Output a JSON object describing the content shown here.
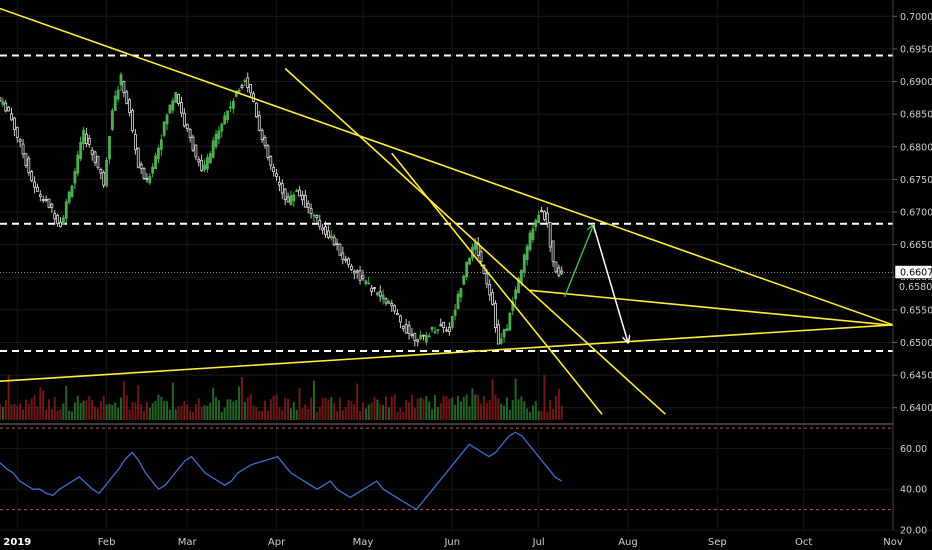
{
  "chart_data": [
    {
      "type": "candlestick",
      "panel": "price",
      "ylim": [
        0.6375,
        0.7025
      ],
      "y_ticks": [
        "0.70000",
        "0.69500",
        "0.69000",
        "0.68500",
        "0.68000",
        "0.67500",
        "0.67000",
        "0.66500",
        "0.66000",
        "0.65500",
        "0.65000",
        "0.64500",
        "0.64000"
      ],
      "x_ticks": [
        {
          "label": "2019",
          "day": 0,
          "bold": true
        },
        {
          "label": "Feb",
          "day": 31,
          "bold": false
        },
        {
          "label": "Mar",
          "day": 59,
          "bold": false
        },
        {
          "label": "Apr",
          "day": 90,
          "bold": false
        },
        {
          "label": "May",
          "day": 120,
          "bold": false
        },
        {
          "label": "Jun",
          "day": 151,
          "bold": false
        },
        {
          "label": "Jul",
          "day": 181,
          "bold": false
        },
        {
          "label": "Aug",
          "day": 212,
          "bold": false
        },
        {
          "label": "Sep",
          "day": 243,
          "bold": false
        },
        {
          "label": "Oct",
          "day": 273,
          "bold": false
        },
        {
          "label": "Nov",
          "day": 304,
          "bold": false
        }
      ],
      "x_domain_days": [
        -6,
        304
      ],
      "last_price": "0.66072",
      "last_price_value": 0.66072,
      "hidden_label": "0.6580",
      "horizontal_levels": [
        0.694,
        0.6682,
        0.6487
      ],
      "price_points": [
        [
          -6,
          0.6875
        ],
        [
          -2,
          0.6855
        ],
        [
          3,
          0.679
        ],
        [
          7,
          0.6735
        ],
        [
          12,
          0.671
        ],
        [
          16,
          0.668
        ],
        [
          20,
          0.6745
        ],
        [
          24,
          0.682
        ],
        [
          28,
          0.678
        ],
        [
          31,
          0.6745
        ],
        [
          34,
          0.686
        ],
        [
          37,
          0.6905
        ],
        [
          40,
          0.685
        ],
        [
          43,
          0.677
        ],
        [
          46,
          0.6745
        ],
        [
          50,
          0.68
        ],
        [
          53,
          0.685
        ],
        [
          56,
          0.6885
        ],
        [
          59,
          0.6835
        ],
        [
          62,
          0.68
        ],
        [
          65,
          0.676
        ],
        [
          68,
          0.679
        ],
        [
          71,
          0.683
        ],
        [
          74,
          0.6855
        ],
        [
          77,
          0.688
        ],
        [
          80,
          0.6905
        ],
        [
          83,
          0.687
        ],
        [
          86,
          0.681
        ],
        [
          89,
          0.677
        ],
        [
          92,
          0.674
        ],
        [
          95,
          0.6715
        ],
        [
          98,
          0.6735
        ],
        [
          102,
          0.6705
        ],
        [
          106,
          0.668
        ],
        [
          110,
          0.666
        ],
        [
          114,
          0.663
        ],
        [
          118,
          0.661
        ],
        [
          122,
          0.659
        ],
        [
          126,
          0.6575
        ],
        [
          130,
          0.656
        ],
        [
          134,
          0.653
        ],
        [
          138,
          0.651
        ],
        [
          142,
          0.6505
        ],
        [
          145,
          0.652
        ],
        [
          148,
          0.6525
        ],
        [
          151,
          0.652
        ],
        [
          154,
          0.657
        ],
        [
          157,
          0.6625
        ],
        [
          160,
          0.665
        ],
        [
          163,
          0.661
        ],
        [
          166,
          0.656
        ],
        [
          168,
          0.6495
        ],
        [
          171,
          0.6525
        ],
        [
          174,
          0.658
        ],
        [
          177,
          0.663
        ],
        [
          180,
          0.668
        ],
        [
          183,
          0.6705
        ],
        [
          185,
          0.668
        ],
        [
          187,
          0.662
        ],
        [
          189,
          0.6607
        ]
      ],
      "volume_range": [
        0,
        1
      ],
      "drawings": [
        {
          "type": "trendline",
          "color": "#ffeb3b",
          "from": [
            -8,
            0.7015
          ],
          "to": [
            304,
            0.6527
          ]
        },
        {
          "type": "trendline",
          "color": "#ffeb3b",
          "from": [
            93,
            0.692
          ],
          "to": [
            225,
            0.639
          ]
        },
        {
          "type": "trendline",
          "color": "#ffeb3b",
          "from": [
            -8,
            0.644
          ],
          "to": [
            304,
            0.6527
          ]
        },
        {
          "type": "trendline",
          "color": "#ffeb3b",
          "from": [
            130,
            0.679
          ],
          "to": [
            203,
            0.639
          ]
        },
        {
          "type": "trendline",
          "color": "#ffeb3b",
          "from": [
            178,
            0.658
          ],
          "to": [
            307,
            0.6525
          ]
        },
        {
          "type": "arrow",
          "color": "#4caf50",
          "from": [
            190,
            0.657
          ],
          "to": [
            200,
            0.668
          ]
        },
        {
          "type": "arrow",
          "color": "#ffffff",
          "from": [
            200,
            0.668
          ],
          "to": [
            212,
            0.65
          ]
        }
      ]
    },
    {
      "type": "line",
      "panel": "rsi",
      "ylim": [
        20,
        72
      ],
      "y_ticks": [
        "60.00",
        "40.00",
        "20.00"
      ],
      "bands": [
        70,
        30
      ],
      "series": [
        {
          "values": [
            53,
            50,
            48,
            44,
            42,
            40,
            40,
            38,
            37,
            40,
            42,
            44,
            46,
            43,
            40,
            38,
            42,
            46,
            50,
            55,
            58,
            54,
            48,
            44,
            40,
            42,
            46,
            50,
            54,
            56,
            52,
            48,
            46,
            44,
            42,
            44,
            48,
            50,
            52,
            53,
            54,
            55,
            56,
            52,
            48,
            46,
            44,
            42,
            40,
            42,
            44,
            40,
            38,
            36,
            38,
            40,
            42,
            44,
            40,
            38,
            36,
            34,
            32,
            30,
            34,
            38,
            42,
            46,
            50,
            54,
            58,
            62,
            60,
            58,
            56,
            58,
            62,
            66,
            68,
            66,
            62,
            58,
            54,
            50,
            46,
            44
          ]
        }
      ]
    }
  ],
  "colors": {
    "up": "#4caf50",
    "down": "#e0e0e0",
    "trend": "#ffeb3b",
    "rsi_line": "#3f6fd0",
    "band": "#c0622d",
    "vol_up": "#2e7d32",
    "vol_down": "#8b1e1e",
    "label_bg": "#ffffff"
  }
}
